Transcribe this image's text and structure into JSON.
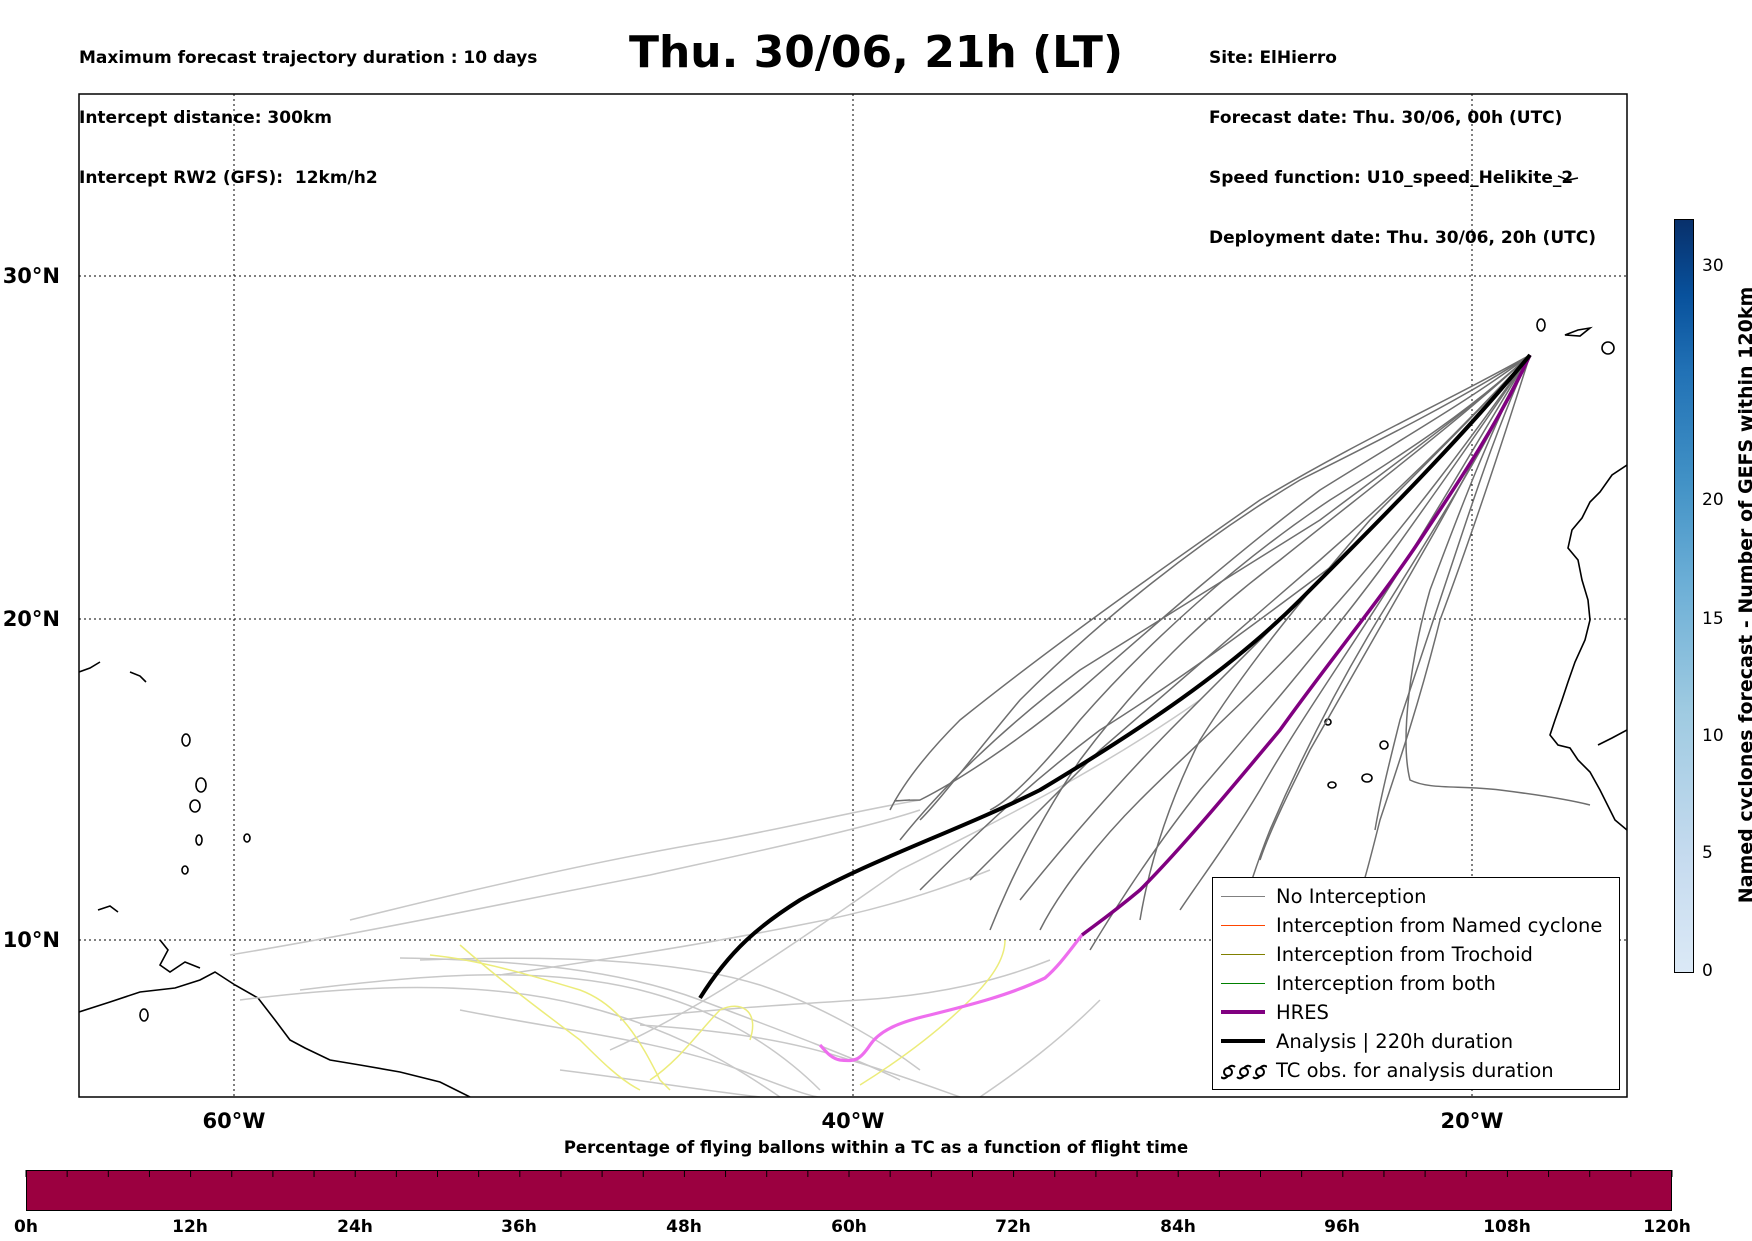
{
  "header": {
    "left": [
      "Maximum forecast trajectory duration : 10 days",
      "Intercept distance: 300km",
      "Intercept RW2 (GFS):  12km/h2"
    ],
    "title": "Thu. 30/06, 21h (LT)",
    "right": [
      "Site: ElHierro",
      "Forecast date: Thu. 30/06, 00h (UTC)",
      "Speed function: U10_speed_Helikite_2",
      "Deployment date: Thu. 30/06, 20h (UTC)"
    ]
  },
  "map": {
    "lat_labels": [
      "30°N",
      "20°N",
      "10°N"
    ],
    "lon_labels": [
      "60°W",
      "40°W",
      "20°W"
    ]
  },
  "legend": {
    "items": [
      {
        "label": "No Interception",
        "color": "#808080"
      },
      {
        "label": "Interception from Named cyclone",
        "color": "#ff4500"
      },
      {
        "label": "Interception from Trochoid",
        "color": "#808000"
      },
      {
        "label": "Interception from both",
        "color": "#008000"
      },
      {
        "label": "HRES",
        "color": "#800080"
      },
      {
        "label": "Analysis | 220h duration",
        "color": "#000000"
      },
      {
        "label": "TC obs. for analysis duration",
        "color": "#000000",
        "icon": "tc-symbol-icon"
      }
    ]
  },
  "bottom_colorbar": {
    "title": "Percentage of flying ballons within a TC as a function of flight time",
    "ticks": [
      "0h",
      "12h",
      "24h",
      "36h",
      "48h",
      "60h",
      "72h",
      "84h",
      "96h",
      "108h",
      "120h"
    ],
    "fill_color": "#9b0040"
  },
  "side_colorbar": {
    "title": "Named cyclones forecast - Number of GEFS within 120km",
    "ticks": [
      "0",
      "5",
      "10",
      "15",
      "20",
      "30"
    ]
  },
  "colors": {
    "trajectory_gray": "#6e6e6e",
    "trajectory_lightgray": "#c8c8c8",
    "trajectory_yellow": "#ecec7a",
    "hres_purple": "#800080",
    "hres_magenta": "#ee6eee",
    "analysis_black": "#000000"
  }
}
